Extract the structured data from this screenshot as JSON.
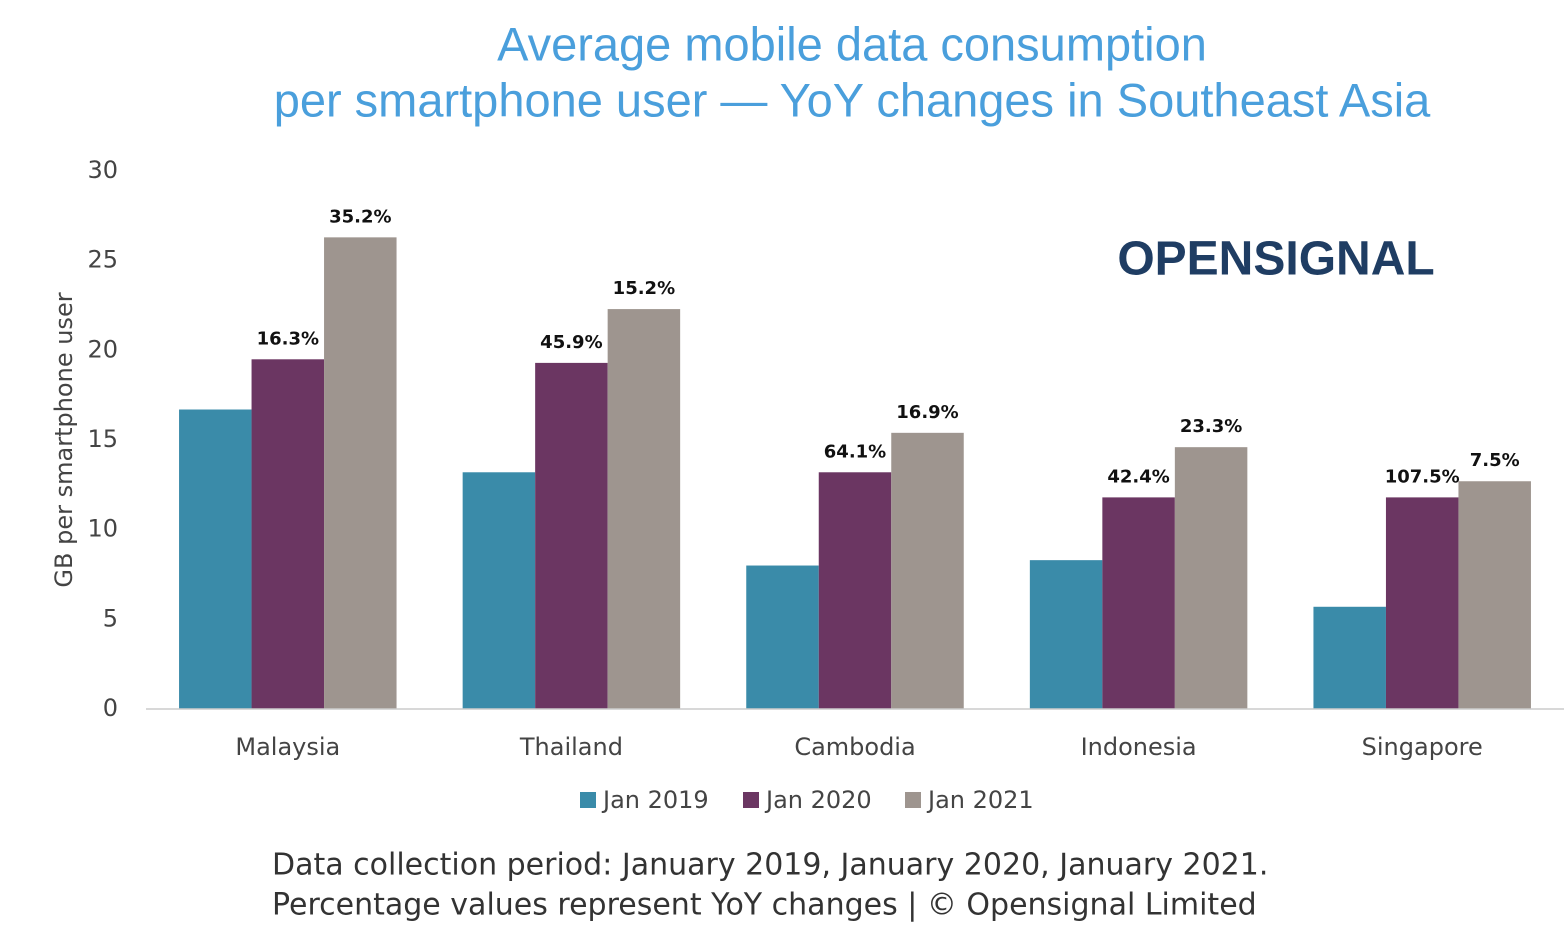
{
  "chart_data": {
    "type": "bar",
    "title": [
      "Average mobile data consumption",
      "per smartphone user  — YoY changes in Southeast Asia"
    ],
    "y_label": "GB per smartphone user",
    "logo": "OPENSIGNAL",
    "footnote": [
      "Data collection period: January 2019, January 2020, January 2021.",
      "Percentage values represent YoY changes | © Opensignal Limited"
    ],
    "categories": [
      "Malaysia",
      "Thailand",
      "Cambodia",
      "Indonesia",
      "Singapore"
    ],
    "series": [
      {
        "name": "Jan 2019",
        "color": "#3a8ba9",
        "values": [
          16.7,
          13.2,
          8.0,
          8.3,
          5.7
        ]
      },
      {
        "name": "Jan 2020",
        "color": "#6b3662",
        "values": [
          19.5,
          19.3,
          13.2,
          11.8,
          11.8
        ],
        "annotations": [
          "16.3%",
          "45.9%",
          "64.1%",
          "42.4%",
          "107.5%"
        ]
      },
      {
        "name": "Jan 2021",
        "color": "#9e958f",
        "values": [
          26.3,
          22.3,
          15.4,
          14.6,
          12.7
        ],
        "annotations": [
          "35.2%",
          "15.2%",
          "16.9%",
          "23.3%",
          "7.5%"
        ]
      }
    ],
    "ylim": [
      0,
      30
    ],
    "yticks": [
      0,
      5,
      10,
      15,
      20,
      25,
      30
    ],
    "grid": false,
    "legend": "bottom"
  }
}
